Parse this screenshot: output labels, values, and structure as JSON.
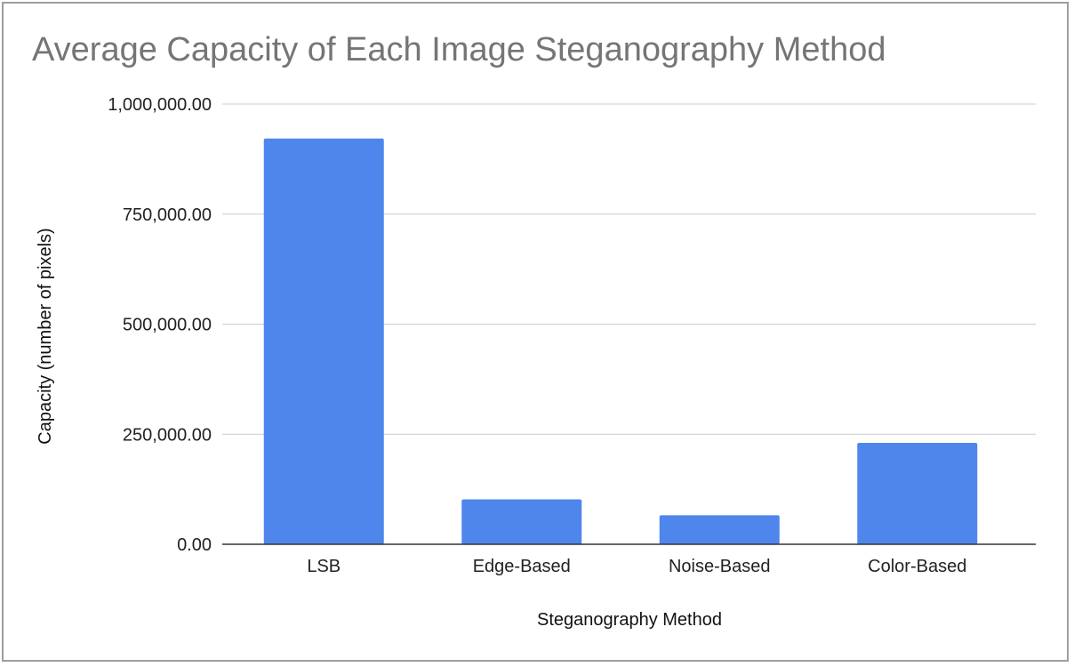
{
  "chart_data": {
    "type": "bar",
    "title": "Average Capacity of Each Image Steganography Method",
    "xlabel": "Steganography Method",
    "ylabel": "Capacity (number of pixels)",
    "categories": [
      "LSB",
      "Edge-Based",
      "Noise-Based",
      "Color-Based"
    ],
    "values": [
      921600,
      102000,
      66000,
      230400
    ],
    "ylim": [
      0,
      1000000
    ],
    "yticks": [
      0,
      250000,
      500000,
      750000,
      1000000
    ],
    "ytick_labels": [
      "0.00",
      "250,000.00",
      "500,000.00",
      "750,000.00",
      "1,000,000.00"
    ],
    "grid": true,
    "legend": "none",
    "bar_color": "#4f86ec",
    "grid_color": "#cccccc",
    "axis_color": "#333333",
    "title_color": "#757575"
  }
}
